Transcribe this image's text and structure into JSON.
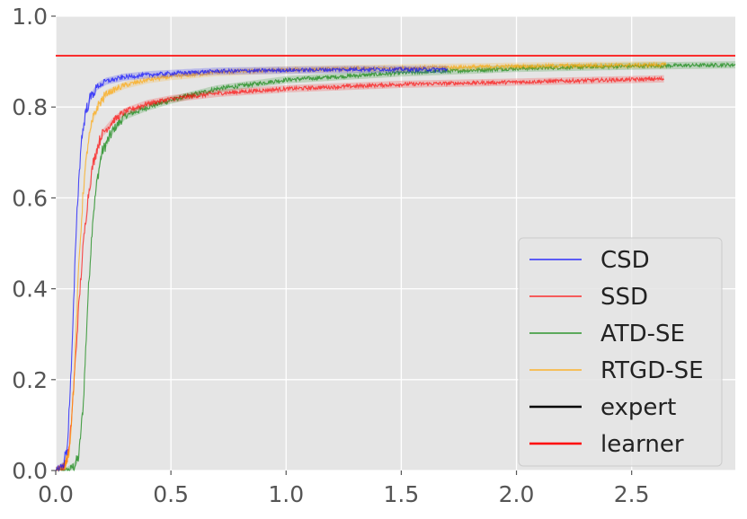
{
  "chart_data": {
    "type": "line",
    "title": "",
    "xlabel": "",
    "ylabel": "",
    "xlim": [
      0,
      2.95
    ],
    "ylim": [
      0.0,
      1.0
    ],
    "grid": true,
    "legend_position": "lower-right",
    "x_ticks": [
      "0.0",
      "0.5",
      "1.0",
      "1.5",
      "2.0",
      "2.5"
    ],
    "y_ticks": [
      "0.0",
      "0.2",
      "0.4",
      "0.6",
      "0.8",
      "1.0"
    ],
    "colors": {
      "background": "#e5e5e5",
      "grid": "#ffffff",
      "CSD": "#0000ff",
      "SSD": "#ff0000",
      "ATD-SE": "#008000",
      "RTGD-SE": "#ffa500",
      "expert": "#000000",
      "learner": "#ff0000"
    },
    "series": [
      {
        "name": "CSD",
        "color": "#0000ff",
        "x": [
          0.0,
          0.03,
          0.05,
          0.07,
          0.09,
          0.11,
          0.13,
          0.15,
          0.18,
          0.22,
          0.3,
          0.4,
          0.5,
          0.7,
          1.0,
          1.3,
          1.7
        ],
        "y": [
          0.0,
          0.01,
          0.05,
          0.25,
          0.55,
          0.72,
          0.79,
          0.82,
          0.845,
          0.857,
          0.866,
          0.871,
          0.874,
          0.879,
          0.881,
          0.883,
          0.883
        ]
      },
      {
        "name": "SSD",
        "color": "#ff0000",
        "x": [
          0.0,
          0.04,
          0.06,
          0.08,
          0.1,
          0.12,
          0.14,
          0.16,
          0.18,
          0.2,
          0.25,
          0.3,
          0.4,
          0.5,
          0.7,
          1.0,
          1.5,
          2.0,
          2.64
        ],
        "y": [
          0.0,
          0.01,
          0.05,
          0.2,
          0.36,
          0.5,
          0.6,
          0.67,
          0.71,
          0.74,
          0.77,
          0.79,
          0.808,
          0.818,
          0.83,
          0.84,
          0.85,
          0.855,
          0.862
        ]
      },
      {
        "name": "ATD-SE",
        "color": "#008000",
        "x": [
          0.0,
          0.05,
          0.08,
          0.1,
          0.12,
          0.14,
          0.16,
          0.18,
          0.2,
          0.25,
          0.3,
          0.4,
          0.5,
          0.7,
          1.0,
          1.5,
          2.0,
          2.5,
          2.95
        ],
        "y": [
          0.0,
          0.0,
          0.01,
          0.03,
          0.15,
          0.38,
          0.55,
          0.64,
          0.7,
          0.75,
          0.78,
          0.8,
          0.815,
          0.84,
          0.86,
          0.875,
          0.885,
          0.89,
          0.893
        ]
      },
      {
        "name": "RTGD-SE",
        "color": "#ffa500",
        "x": [
          0.0,
          0.04,
          0.06,
          0.08,
          0.1,
          0.12,
          0.14,
          0.16,
          0.18,
          0.22,
          0.3,
          0.4,
          0.5,
          0.7,
          1.0,
          1.5,
          2.0,
          2.65
        ],
        "y": [
          0.0,
          0.01,
          0.05,
          0.2,
          0.45,
          0.62,
          0.72,
          0.77,
          0.8,
          0.83,
          0.848,
          0.86,
          0.867,
          0.876,
          0.882,
          0.886,
          0.89,
          0.893
        ]
      }
    ],
    "reference_lines": [
      {
        "name": "learner",
        "color": "#ff0000",
        "y": 0.913
      }
    ],
    "legend": [
      {
        "label": "CSD",
        "color": "#0000ff"
      },
      {
        "label": "SSD",
        "color": "#ff0000"
      },
      {
        "label": "ATD-SE",
        "color": "#008000"
      },
      {
        "label": "RTGD-SE",
        "color": "#ffa500"
      },
      {
        "label": "expert",
        "color": "#000000"
      },
      {
        "label": "learner",
        "color": "#ff0000"
      }
    ]
  }
}
